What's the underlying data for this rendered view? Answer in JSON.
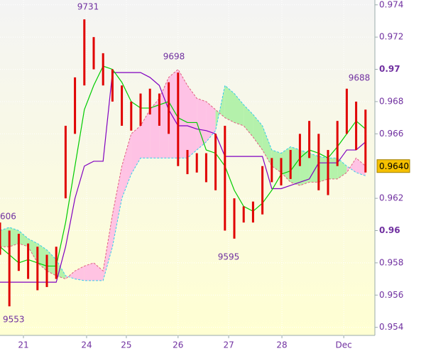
{
  "chart_data": {
    "type": "ichimoku",
    "x": [
      0,
      2.5,
      5,
      7.5,
      10,
      12.5,
      15,
      17.5,
      20,
      22.5,
      25,
      27.5,
      30,
      32.5,
      35,
      37.5,
      40,
      42.5,
      45,
      47.5,
      50,
      52.5,
      55,
      57.5,
      60,
      62.5,
      65,
      67.5,
      70,
      72.5,
      75,
      77.5,
      80,
      82.5,
      85,
      87.5,
      90,
      92.5,
      95,
      97.5
    ],
    "series": [
      {
        "name": "High",
        "color": "#e00000",
        "values": [
          0.9605,
          0.96,
          0.9598,
          0.9592,
          0.959,
          0.9585,
          0.959,
          0.9665,
          0.9695,
          0.9731,
          0.972,
          0.971,
          0.97,
          0.969,
          0.968,
          0.9685,
          0.9688,
          0.9685,
          0.9692,
          0.9698,
          0.965,
          0.9648,
          0.9648,
          0.966,
          0.9665,
          0.962,
          0.9615,
          0.9618,
          0.964,
          0.9645,
          0.9645,
          0.965,
          0.966,
          0.9668,
          0.966,
          0.965,
          0.9668,
          0.9688,
          0.968,
          0.9675
        ]
      },
      {
        "name": "Low",
        "color": "#e00000",
        "values": [
          0.9585,
          0.9553,
          0.9575,
          0.957,
          0.9563,
          0.9565,
          0.957,
          0.962,
          0.966,
          0.969,
          0.97,
          0.969,
          0.968,
          0.9665,
          0.9662,
          0.9665,
          0.9672,
          0.9665,
          0.966,
          0.964,
          0.9635,
          0.9636,
          0.963,
          0.9625,
          0.96,
          0.9595,
          0.9605,
          0.9605,
          0.961,
          0.963,
          0.9628,
          0.9632,
          0.964,
          0.9645,
          0.9625,
          0.9622,
          0.964,
          0.966,
          0.965,
          0.9636
        ]
      },
      {
        "name": "Tenkan",
        "color": "#00cc00",
        "values": [
          0.959,
          0.9585,
          0.958,
          0.9582,
          0.958,
          0.9578,
          0.9578,
          0.9605,
          0.964,
          0.9675,
          0.969,
          0.9702,
          0.97,
          0.9692,
          0.968,
          0.9676,
          0.9676,
          0.9678,
          0.968,
          0.967,
          0.9667,
          0.9667,
          0.965,
          0.9648,
          0.964,
          0.9625,
          0.9615,
          0.9612,
          0.9617,
          0.9625,
          0.9635,
          0.9637,
          0.9645,
          0.965,
          0.9648,
          0.9645,
          0.9652,
          0.966,
          0.9668,
          0.9663
        ]
      },
      {
        "name": "Kijun",
        "color": "#8000c0",
        "values": [
          0.9568,
          0.9568,
          0.9568,
          0.9568,
          0.9568,
          0.9568,
          0.9568,
          0.959,
          0.962,
          0.964,
          0.9643,
          0.9643,
          0.9698,
          0.9698,
          0.9698,
          0.9698,
          0.9695,
          0.969,
          0.9675,
          0.9665,
          0.9665,
          0.9663,
          0.9662,
          0.966,
          0.9646,
          0.9646,
          0.9646,
          0.9646,
          0.9646,
          0.9626,
          0.9626,
          0.9628,
          0.963,
          0.9632,
          0.9642,
          0.9642,
          0.9642,
          0.965,
          0.965,
          0.9655
        ]
      },
      {
        "name": "Span A",
        "color": "#33ccee",
        "values": [
          0.96,
          0.9602,
          0.96,
          0.9595,
          0.9592,
          0.9588,
          0.9582,
          0.9572,
          0.957,
          0.9569,
          0.9569,
          0.9569,
          0.959,
          0.962,
          0.9635,
          0.9645,
          0.9645,
          0.9645,
          0.9645,
          0.9645,
          0.9645,
          0.965,
          0.9655,
          0.9662,
          0.969,
          0.9685,
          0.9678,
          0.9672,
          0.9665,
          0.965,
          0.9648,
          0.9652,
          0.965,
          0.9648,
          0.9646,
          0.9645,
          0.9645,
          0.964,
          0.9636,
          0.9634
        ]
      },
      {
        "name": "Span B",
        "color": "#e06080",
        "values": [
          0.959,
          0.959,
          0.9592,
          0.959,
          0.958,
          0.9575,
          0.9572,
          0.957,
          0.9575,
          0.9578,
          0.958,
          0.9575,
          0.961,
          0.964,
          0.966,
          0.9665,
          0.9675,
          0.9682,
          0.9695,
          0.97,
          0.969,
          0.9682,
          0.968,
          0.9675,
          0.967,
          0.9667,
          0.9665,
          0.9658,
          0.965,
          0.964,
          0.9636,
          0.963,
          0.9628,
          0.963,
          0.963,
          0.9632,
          0.9632,
          0.9636,
          0.9645,
          0.964
        ]
      }
    ],
    "xlim": [
      0,
      100
    ],
    "xticks": [
      {
        "value": 6.25,
        "label": "21"
      },
      {
        "value": 23.1,
        "label": "24"
      },
      {
        "value": 33.7,
        "label": "25"
      },
      {
        "value": 47.5,
        "label": "26"
      },
      {
        "value": 61,
        "label": "27"
      },
      {
        "value": 75.2,
        "label": "28"
      },
      {
        "value": 91.7,
        "label": "Dec"
      }
    ],
    "ylim": [
      0.9535,
      0.9743
    ],
    "yticks": [
      0.954,
      0.956,
      0.958,
      0.96,
      0.962,
      0.966,
      0.968,
      0.97,
      0.972,
      0.974
    ],
    "price_tag": {
      "value": 0.964,
      "label": "0.9640"
    },
    "annotations": [
      "9731",
      "9698",
      "9595",
      "9688",
      "9553",
      "606"
    ],
    "grid": true
  }
}
